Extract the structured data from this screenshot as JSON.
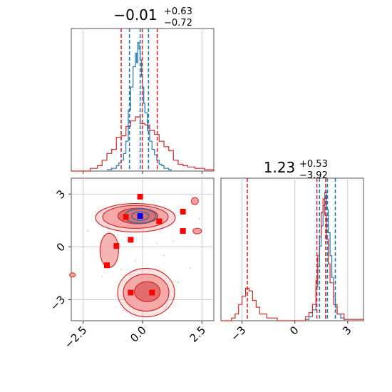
{
  "chart_data": [
    {
      "type": "line",
      "panel": "marginal-x",
      "title": {
        "main": "−0.01",
        "upper": "+0.63",
        "lower": "−0.72"
      },
      "xlim": [
        -3.0,
        3.0
      ],
      "grid": true,
      "colors": {
        "blue": "#1f77b4",
        "red": "#d62728"
      },
      "quantiles": {
        "blue": [
          -0.55,
          -0.1,
          0.25
        ],
        "red": [
          -0.9,
          -0.01,
          0.62
        ]
      },
      "series": [
        {
          "color": "blue",
          "x": [
            -1.5,
            -1.3,
            -1.1,
            -1.0,
            -0.9,
            -0.8,
            -0.7,
            -0.6,
            -0.5,
            -0.4,
            -0.3,
            -0.25,
            -0.2,
            -0.15,
            -0.1,
            -0.05,
            0.0,
            0.05,
            0.1,
            0.2,
            0.3,
            0.4,
            0.5,
            0.6,
            0.7,
            0.8,
            0.9,
            1.0,
            1.1,
            1.2
          ],
          "y": [
            0.01,
            0.02,
            0.04,
            0.06,
            0.08,
            0.13,
            0.22,
            0.45,
            0.62,
            0.77,
            0.87,
            0.8,
            0.95,
            0.9,
            0.82,
            0.7,
            0.62,
            0.5,
            0.43,
            0.3,
            0.22,
            0.16,
            0.12,
            0.08,
            0.05,
            0.04,
            0.02,
            0.02,
            0.01,
            0.0
          ]
        },
        {
          "color": "red",
          "x": [
            -3.0,
            -2.2,
            -1.9,
            -1.7,
            -1.5,
            -1.3,
            -1.1,
            -0.9,
            -0.7,
            -0.5,
            -0.3,
            -0.1,
            0.1,
            0.3,
            0.5,
            0.7,
            0.9,
            1.1,
            1.3,
            1.5,
            1.7,
            1.9,
            2.2,
            2.6,
            3.0
          ],
          "y": [
            0.0,
            0.02,
            0.04,
            0.08,
            0.13,
            0.16,
            0.25,
            0.26,
            0.33,
            0.37,
            0.4,
            0.35,
            0.34,
            0.3,
            0.27,
            0.22,
            0.18,
            0.15,
            0.08,
            0.05,
            0.04,
            0.03,
            0.02,
            0.01,
            0.0
          ]
        }
      ]
    },
    {
      "type": "scatter",
      "panel": "joint",
      "xlim": [
        -3.0,
        3.0
      ],
      "ylim": [
        -4.2,
        3.9
      ],
      "xticks": [
        "−2.5",
        "0.0",
        "2.5"
      ],
      "yticks": [
        "3",
        "0",
        "−3"
      ],
      "xtick_values": [
        -2.5,
        0.0,
        2.5
      ],
      "ytick_values": [
        3,
        0,
        -3
      ],
      "grid": true,
      "colors": {
        "blue": "#1f77b4",
        "red": "#d62728",
        "fill_light": "#f4a3a3",
        "fill_dark": "#e06666"
      },
      "red_markers": [
        {
          "x": -0.7,
          "y": 1.7
        },
        {
          "x": -0.1,
          "y": 2.85
        },
        {
          "x": 0.7,
          "y": 1.45
        },
        {
          "x": 1.7,
          "y": 2.0
        },
        {
          "x": 1.7,
          "y": 0.9
        },
        {
          "x": -0.5,
          "y": 0.4
        },
        {
          "x": -1.1,
          "y": 0.05
        },
        {
          "x": -1.5,
          "y": -1.05
        },
        {
          "x": -0.5,
          "y": -2.6
        },
        {
          "x": 0.4,
          "y": -2.6
        }
      ],
      "blue_markers": [
        {
          "x": -0.1,
          "y": 1.75
        }
      ]
    },
    {
      "type": "line",
      "panel": "marginal-y",
      "title": {
        "main": "1.23",
        "upper": "+0.53",
        "lower": "−3.92"
      },
      "xlim": [
        -4.2,
        3.9
      ],
      "xticks": [
        "−3",
        "0",
        "3"
      ],
      "xtick_values": [
        -3,
        0,
        3
      ],
      "grid": true,
      "colors": {
        "blue": "#1f77b4",
        "red": "#d62728"
      },
      "quantiles": {
        "blue": [
          1.4,
          1.85,
          2.3
        ],
        "red": [
          -2.7,
          1.25,
          1.75
        ]
      },
      "series": [
        {
          "color": "blue",
          "x": [
            0.6,
            0.8,
            1.0,
            1.2,
            1.3,
            1.4,
            1.5,
            1.6,
            1.7,
            1.8,
            1.9,
            2.0,
            2.1,
            2.2,
            2.3,
            2.4,
            2.6,
            2.8
          ],
          "y": [
            0.01,
            0.03,
            0.08,
            0.25,
            0.4,
            0.55,
            0.7,
            0.85,
            0.95,
            0.82,
            0.65,
            0.48,
            0.32,
            0.18,
            0.1,
            0.05,
            0.02,
            0.0
          ]
        },
        {
          "color": "red",
          "x": [
            -4.2,
            -3.6,
            -3.4,
            -3.2,
            -3.0,
            -2.8,
            -2.6,
            -2.4,
            -2.2,
            -2.0,
            -1.6,
            -1.0,
            0.0,
            0.6,
            0.8,
            1.0,
            1.2,
            1.3,
            1.4,
            1.5,
            1.6,
            1.7,
            1.8,
            1.9,
            2.0,
            2.2,
            2.4,
            2.8,
            3.9
          ],
          "y": [
            0.0,
            0.02,
            0.05,
            0.12,
            0.18,
            0.24,
            0.22,
            0.15,
            0.1,
            0.05,
            0.02,
            0.0,
            0.0,
            0.03,
            0.06,
            0.12,
            0.3,
            0.48,
            0.62,
            0.8,
            0.9,
            0.78,
            0.6,
            0.42,
            0.28,
            0.12,
            0.05,
            0.01,
            0.0
          ]
        }
      ]
    }
  ]
}
